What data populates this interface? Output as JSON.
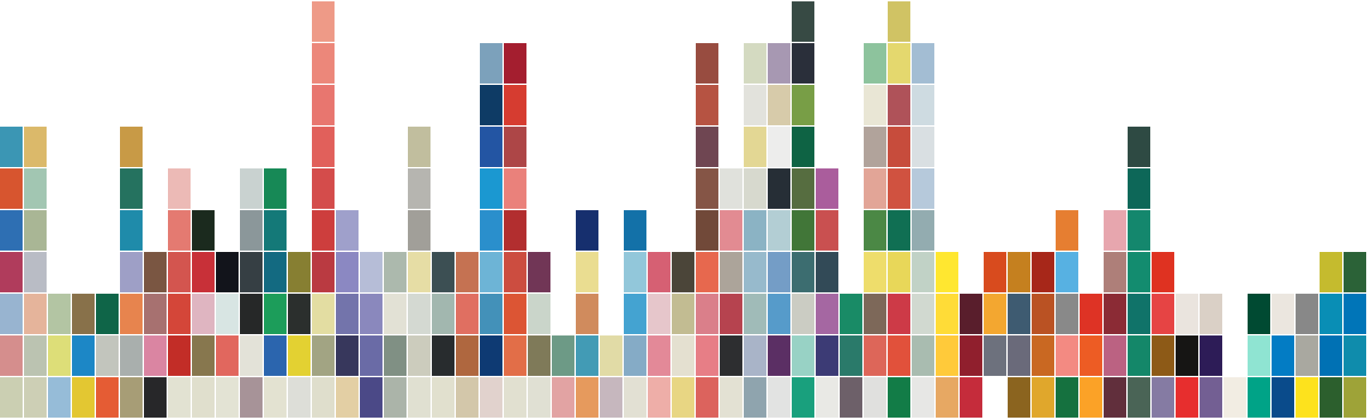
{
  "swatch_columns": [
    [
      "#CBCFB2",
      "#D58E8D",
      "#98B4D0",
      "#B03C5C",
      "#2E6FB3",
      "#D7552F",
      "#3B96B4"
    ],
    [
      "#CDCFB5",
      "#BBC3B1",
      "#E5B49B",
      "#B9BCC5",
      "#A9B695",
      "#A2C6B2",
      "#DBB96A"
    ],
    [
      "#96BCD8",
      "#DDDE78",
      "#B3C5A3"
    ],
    [
      "#E3C732",
      "#1C87C6",
      "#88714A"
    ],
    [
      "#E55C34",
      "#C2C5BD",
      "#0F6548"
    ],
    [
      "#A79D76",
      "#A9AFAD",
      "#E7844E",
      "#9E9FC6",
      "#1F8BAA",
      "#25725F",
      "#C89A46"
    ],
    [
      "#272729",
      "#DA85A2",
      "#A77170",
      "#7A5642"
    ],
    [
      "#E2E2D2",
      "#C22D27",
      "#D44639",
      "#D3554F",
      "#E47A71",
      "#ECBAB6"
    ],
    [
      "#E0DFCD",
      "#87774E",
      "#DFB5C1",
      "#C83038",
      "#1B2A1E"
    ],
    [
      "#E3E3D4",
      "#E1675E",
      "#D8E5E3",
      "#12141B"
    ],
    [
      "#A79398",
      "#E3E2D8",
      "#262828",
      "#363F44",
      "#8B979A",
      "#C9D2D0"
    ],
    [
      "#E3E2D1",
      "#2B65AE",
      "#1C9D5A",
      "#136A81",
      "#147978",
      "#178956"
    ],
    [
      "#DDDED8",
      "#E3D132",
      "#2B2F2D",
      "#877F32"
    ],
    [
      "#DFDECC",
      "#A2A483",
      "#E3DDA2",
      "#BA3A41",
      "#CD3E3D",
      "#D44C4B",
      "#E1605B",
      "#E8766F",
      "#EC877A",
      "#EE9A87"
    ],
    [
      "#E3CFA4",
      "#37375C",
      "#7374AB",
      "#8B88C2",
      "#9FA0CB"
    ],
    [
      "#4B4987",
      "#6A6BA6",
      "#8A88BD",
      "#B6BDD7"
    ],
    [
      "#ABB4A9",
      "#809084",
      "#E2E1D5",
      "#ACB9AD"
    ],
    [
      "#E0E0D1",
      "#CCCCBD",
      "#D4D9D2",
      "#E6DDA5",
      "#A19F99",
      "#B6B5B0",
      "#C1BE9E"
    ],
    [
      "#E1E0CE",
      "#282C2E",
      "#A2B7AF",
      "#3C4F53"
    ],
    [
      "#D3C7AA",
      "#AF673F",
      "#E06F61",
      "#C57252"
    ],
    [
      "#E1D2CD",
      "#0E3A73",
      "#4391B9",
      "#6DB4D6",
      "#2A8FCC",
      "#1B98D1",
      "#2355A3",
      "#0E3B65",
      "#7CA1BB"
    ],
    [
      "#E1E0D0",
      "#E26E48",
      "#DC5534",
      "#CC4D40",
      "#B22E2F",
      "#EA817B",
      "#AD4647",
      "#D63C30",
      "#A41E2F"
    ],
    [
      "#E0E0D3",
      "#7F7A59",
      "#CAD5CA",
      "#713656"
    ],
    [
      "#E2A3A3",
      "#6D9A86"
    ],
    [
      "#E69A5D",
      "#429BB5",
      "#D08B5D",
      "#EADD91",
      "#162F6E"
    ],
    [
      "#C6B7BE",
      "#E1DBA6"
    ],
    [
      "#E2E0D3",
      "#85ABC6",
      "#44A3D1",
      "#92C7DA",
      "#1371A8"
    ],
    [
      "#EEAEA8",
      "#E38998",
      "#E6C6CB",
      "#D66073"
    ],
    [
      "#E8D683",
      "#E4E0D0",
      "#C2BC92",
      "#4B4539"
    ],
    [
      "#DC635D",
      "#E77E86",
      "#DA7F8A",
      "#E7684E",
      "#714939",
      "#855546",
      "#6F4652",
      "#B65342",
      "#984C40"
    ],
    [
      "#E3E1D3",
      "#2D2E30",
      "#B6434F",
      "#ACA49A",
      "#E28B92",
      "#E0E1DC"
    ],
    [
      "#8FA4AE",
      "#A9B4C8",
      "#A0BBB8",
      "#97BACC",
      "#8BB3C4",
      "#D7D9CE",
      "#E3D794",
      "#E2E2DC",
      "#D4DAC1"
    ],
    [
      "#E2E3E2",
      "#5B2F64",
      "#569BCA",
      "#749DC6",
      "#B3CED4",
      "#262E36",
      "#EDEDEC",
      "#D7CBAA",
      "#A798B2"
    ],
    [
      "#19A07D",
      "#98D2C5",
      "#CBCCC3",
      "#3C6D70",
      "#417638",
      "#566D40",
      "#0E6344",
      "#789E46",
      "#2A2F3A",
      "#374A44"
    ],
    [
      "#E9E9E5",
      "#3C3B75",
      "#A567A2",
      "#324A57",
      "#C95050",
      "#AA5D9C"
    ],
    [
      "#6D6069",
      "#2A7A6A",
      "#198B66"
    ],
    [
      "#E0E0DE",
      "#DD6659",
      "#7D6859",
      "#EEDD6B",
      "#4B8845",
      "#E2A597",
      "#B1A39B",
      "#E9E6D5",
      "#8DC39D"
    ],
    [
      "#127C47",
      "#E1513B",
      "#CD3A47",
      "#E8D759",
      "#106F53",
      "#D05240",
      "#C74C3C",
      "#AF5259",
      "#E4D86E",
      "#D0C364"
    ],
    [
      "#E7E7E5",
      "#A9BCB0",
      "#D1D9D0",
      "#C1D2C6",
      "#93ACB0",
      "#B6C9DB",
      "#D9DFE2",
      "#CEDBE1",
      "#A3BDD3"
    ],
    [
      "#E7A863",
      "#FFCA3A",
      "#FFDC37",
      "#FFE730"
    ],
    [
      "#C52C3B",
      "#901F2D",
      "#591E2C"
    ],
    [
      null,
      "#6D717D",
      "#F3A730",
      "#D84B1E"
    ],
    [
      "#8B641F",
      "#6A6A7A",
      "#3E5B71",
      "#C5801F"
    ],
    [
      "#E0A72C",
      "#C96822",
      "#BA5223",
      "#A72719"
    ],
    [
      "#15713F",
      "#F38A82",
      "#898989",
      "#57B1E2",
      "#E67E31"
    ],
    [
      "#FBA227",
      "#ED5C24",
      "#DE3325"
    ],
    [
      "#612F3C",
      "#BB6282",
      "#8B2B35",
      "#AE7F79",
      "#E7A6AE"
    ],
    [
      "#4A6456",
      "#148769",
      "#107369",
      "#138C6F",
      "#14876D",
      "#0D6758",
      "#2E4A43"
    ],
    [
      "#857BA3",
      "#8D5A17",
      "#E64444",
      "#DF3221"
    ],
    [
      "#E72E2E",
      "#161514",
      "#EAE4DE"
    ],
    [
      "#735F93",
      "#2D1C57",
      "#DAD0C6"
    ],
    [
      "#F2EDE3"
    ],
    [
      "#00A387",
      "#8FE4D2",
      "#004A32"
    ],
    [
      "#0A4B8B",
      "#037CC4",
      "#EBE6DF"
    ],
    [
      "#FDE21D",
      "#A9A8A0",
      "#888888"
    ],
    [
      "#2C5F2D",
      "#0071B4",
      "#098EB5",
      "#C5BB2E"
    ],
    [
      "#9EA338",
      "#0F8CAC",
      "#0075B8",
      "#2B6237"
    ]
  ]
}
